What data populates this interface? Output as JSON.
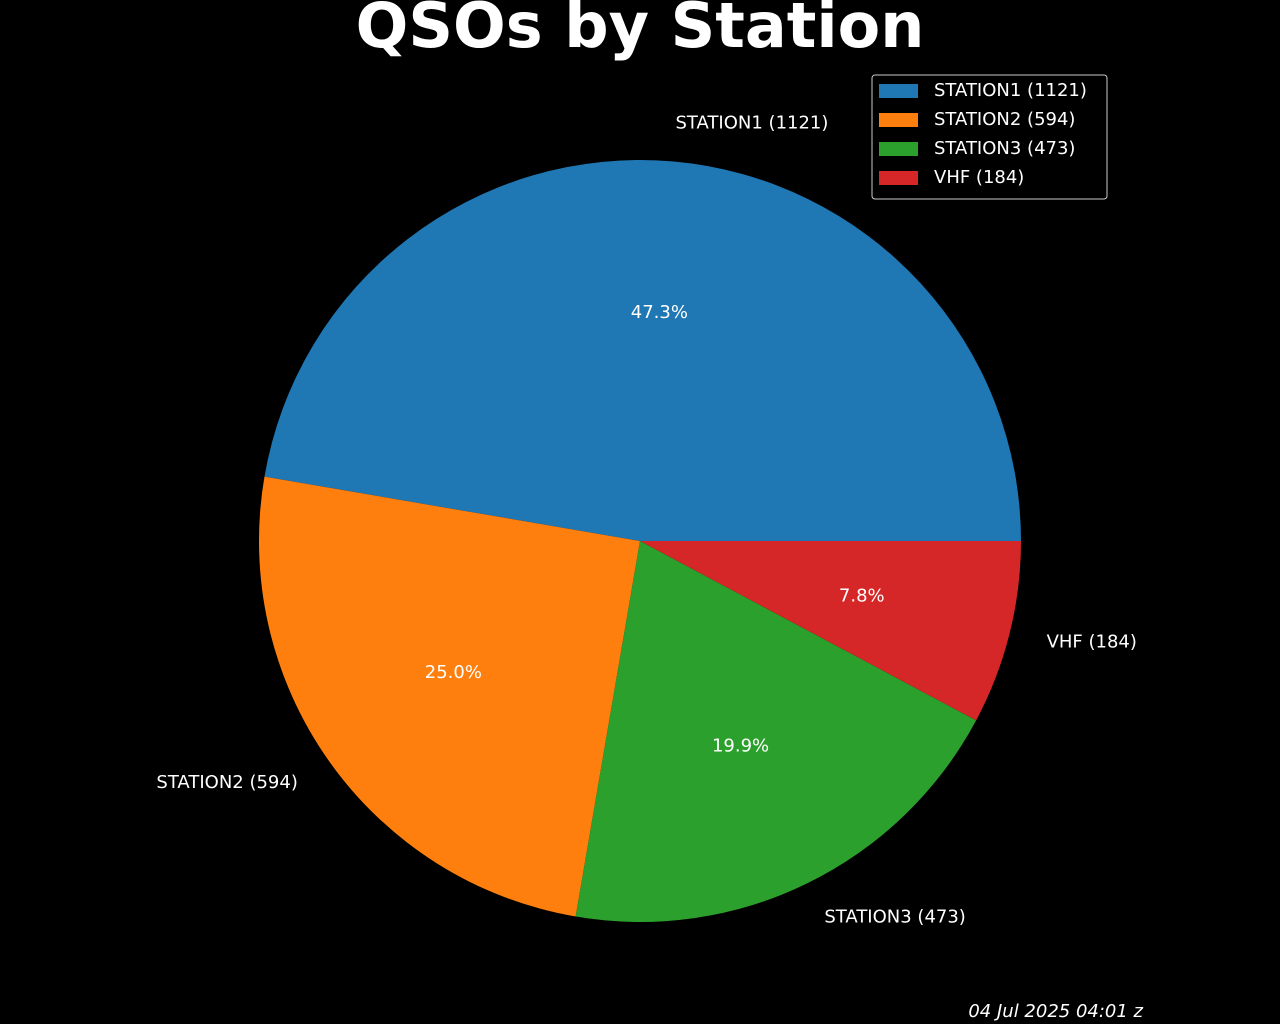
{
  "chart_data": {
    "type": "pie",
    "title": "QSOs by Station",
    "categories": [
      "STATION1 (1121)",
      "STATION2 (594)",
      "STATION3 (473)",
      "VHF (184)"
    ],
    "values": [
      47.3,
      25.0,
      19.9,
      7.8
    ],
    "value_labels": [
      "47.3%",
      "25.0%",
      "19.9%",
      "7.8%"
    ],
    "colors": [
      "#1f77b4",
      "#ff7f0e",
      "#2ca02c",
      "#d62728"
    ],
    "legend": "upper right",
    "annotation": "04 Jul 2025 04:01 z"
  }
}
